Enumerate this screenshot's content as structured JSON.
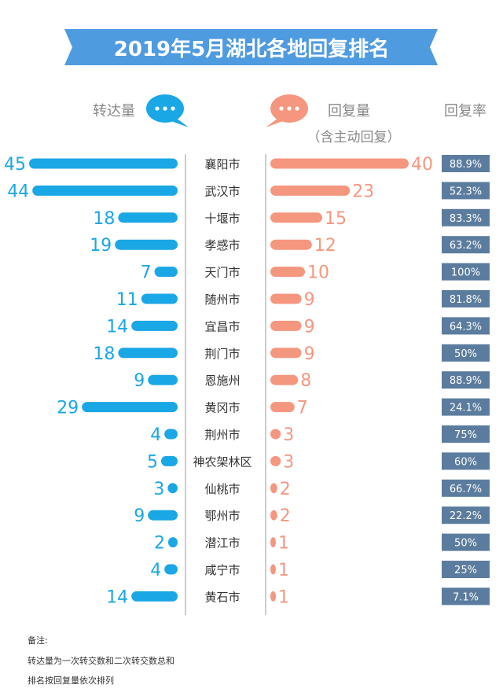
{
  "chart_data": {
    "type": "bar",
    "title": "2019年5月湖北各地回复排名",
    "legend": {
      "left_label": "转达量",
      "right_label": "回复量",
      "right_sublabel": "（含主动回复）",
      "rate_label": "回复率"
    },
    "categories": [
      "襄阳市",
      "武汉市",
      "十堰市",
      "孝感市",
      "天门市",
      "随州市",
      "宜昌市",
      "荆门市",
      "恩施州",
      "黄冈市",
      "荆州市",
      "神农架林区",
      "仙桃市",
      "鄂州市",
      "潜江市",
      "咸宁市",
      "黄石市"
    ],
    "series": [
      {
        "name": "转达量",
        "values": [
          45,
          44,
          18,
          19,
          7,
          11,
          14,
          18,
          9,
          29,
          4,
          5,
          3,
          9,
          2,
          4,
          14
        ]
      },
      {
        "name": "回复量",
        "values": [
          40,
          23,
          15,
          12,
          10,
          9,
          9,
          9,
          8,
          7,
          3,
          3,
          2,
          2,
          1,
          1,
          1
        ]
      },
      {
        "name": "回复率",
        "values": [
          "88.9%",
          "52.3%",
          "83.3%",
          "63.2%",
          "100%",
          "81.8%",
          "64.3%",
          "50%",
          "88.9%",
          "24.1%",
          "75%",
          "60%",
          "66.7%",
          "22.2%",
          "50%",
          "25%",
          "7.1%"
        ]
      }
    ],
    "colors": {
      "left": "#1aa7e6",
      "right": "#f5977f",
      "rate_bg": "#5b7c9e",
      "banner": "#4f9be0",
      "city_text": "#333333"
    }
  },
  "notes": {
    "heading": "备注:",
    "line1": "转达量为一次转交数和二次转交数总和",
    "line2": "排名按回复量依次排列"
  }
}
